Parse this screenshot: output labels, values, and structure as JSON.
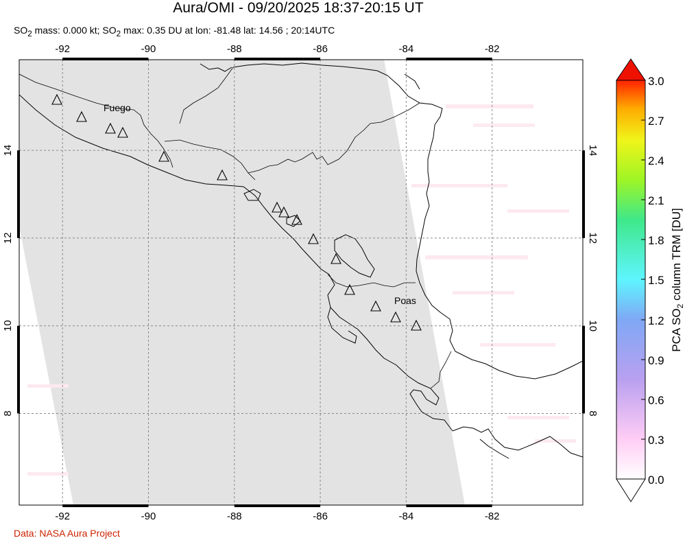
{
  "title": "Aura/OMI - 09/20/2025 18:37-20:15 UT",
  "subtitle": {
    "p1": "SO",
    "sub1": "2",
    "p2": " mass: 0.000 kt; SO",
    "sub2": "2",
    "p3": " max: 0.35 DU at lon: -81.48 lat: 14.56 ; 20:14UTC"
  },
  "credit": "Data: NASA Aura Project",
  "map": {
    "lon_range": [
      -93,
      -80
    ],
    "lat_range": [
      5.8,
      16.1
    ],
    "lon_ticks": [
      "-92",
      "-90",
      "-88",
      "-86",
      "-84",
      "-82"
    ],
    "lat_ticks": [
      "14",
      "12",
      "10",
      "8"
    ],
    "no_data_color": "#e3e3e3",
    "volcanoes": [
      {
        "name": "Fuego",
        "label": "Fuego"
      },
      {
        "name": "Poas",
        "label": "Poas"
      }
    ]
  },
  "colorbar": {
    "ticks": [
      "3.0",
      "2.7",
      "2.4",
      "2.1",
      "1.8",
      "1.5",
      "1.2",
      "0.9",
      "0.6",
      "0.3",
      "0.0"
    ],
    "label_pre": "PCA SO",
    "label_sub": "2",
    "label_post": " column TRM [DU]",
    "colors": [
      "#ffffff",
      "#ffcdf5",
      "#c8a8f3",
      "#7f9ff5",
      "#5ff5ff",
      "#3fe88a",
      "#7ef526",
      "#f0f51a",
      "#ffaa00",
      "#ff2200"
    ],
    "over_color": "#ee1100",
    "under_color": "#ffffff"
  }
}
